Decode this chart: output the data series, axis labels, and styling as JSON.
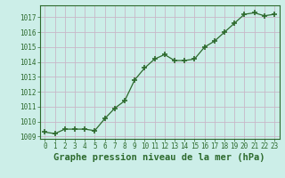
{
  "x": [
    0,
    1,
    2,
    3,
    4,
    5,
    6,
    7,
    8,
    9,
    10,
    11,
    12,
    13,
    14,
    15,
    16,
    17,
    18,
    19,
    20,
    21,
    22,
    23
  ],
  "y": [
    1009.3,
    1009.2,
    1009.5,
    1009.5,
    1009.5,
    1009.4,
    1010.2,
    1010.9,
    1011.4,
    1012.8,
    1013.6,
    1014.2,
    1014.5,
    1014.1,
    1014.1,
    1014.2,
    1015.0,
    1015.4,
    1016.0,
    1016.6,
    1017.2,
    1017.3,
    1017.1,
    1017.2
  ],
  "line_color": "#2d6a2d",
  "marker_color": "#2d6a2d",
  "bg_color": "#cceee8",
  "grid_color": "#c8b8c8",
  "xlabel": "Graphe pression niveau de la mer (hPa)",
  "ylim_min": 1009,
  "ylim_max": 1017.8,
  "yticks": [
    1009,
    1010,
    1011,
    1012,
    1013,
    1014,
    1015,
    1016,
    1017
  ],
  "xticks": [
    0,
    1,
    2,
    3,
    4,
    5,
    6,
    7,
    8,
    9,
    10,
    11,
    12,
    13,
    14,
    15,
    16,
    17,
    18,
    19,
    20,
    21,
    22,
    23
  ],
  "tick_label_fontsize": 5.5,
  "xlabel_fontsize": 7.5,
  "marker_size": 4,
  "line_width": 0.9
}
